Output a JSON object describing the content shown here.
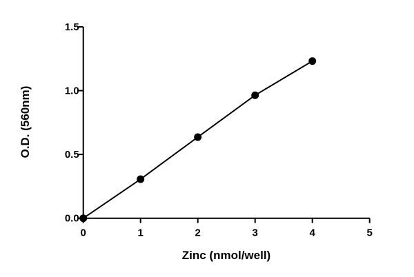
{
  "chart_data": {
    "type": "line",
    "title": "",
    "xlabel": "Zinc (nmol/well)",
    "ylabel": "O.D. (560nm)",
    "xlim": [
      0,
      5
    ],
    "ylim": [
      0,
      1.5
    ],
    "x_ticks": [
      "0",
      "1",
      "2",
      "3",
      "4",
      "5"
    ],
    "y_ticks": [
      "0.0",
      "0.5",
      "1.0",
      "1.5"
    ],
    "grid": false,
    "legend": "none",
    "series": [
      {
        "x": [
          0,
          1,
          2,
          3,
          4
        ],
        "y": [
          0.0,
          0.306,
          0.636,
          0.964,
          1.232
        ],
        "color": "#000000",
        "marker": "circle"
      }
    ]
  }
}
